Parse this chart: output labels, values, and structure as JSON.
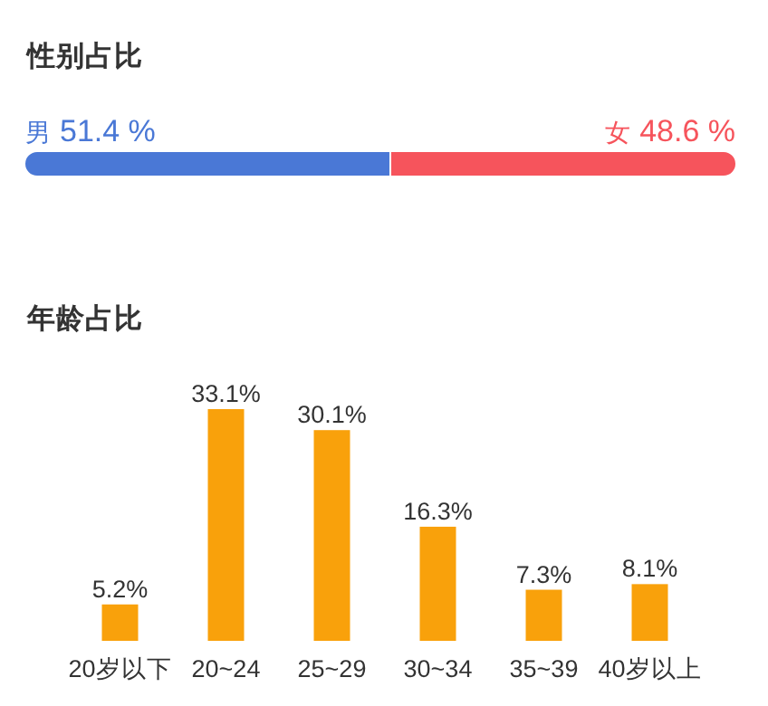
{
  "chart_data": [
    {
      "type": "bar",
      "title": "性别占比",
      "orientation": "horizontal",
      "stacked": true,
      "categories": [
        null
      ],
      "xlim": [
        0,
        100
      ],
      "tick_labels": false,
      "series": [
        {
          "name": "男",
          "color": "#4a78d6",
          "values": [
            51.4
          ],
          "value_labels": [
            "51.4 %"
          ]
        },
        {
          "name": "女",
          "color": "#f6545c",
          "values": [
            48.6
          ],
          "value_labels": [
            "48.6 %"
          ]
        }
      ]
    },
    {
      "type": "bar",
      "title": "年龄占比",
      "categories": [
        "20岁以下",
        "20~24",
        "25~29",
        "30~34",
        "35~39",
        "40岁以上"
      ],
      "tick_labels": "x",
      "values": [
        5.2,
        33.1,
        30.1,
        16.3,
        7.3,
        8.1
      ],
      "color": "#f9a10b",
      "value_labels": [
        "5.2%",
        "33.1%",
        "30.1%",
        "16.3%",
        "7.3%",
        "8.1%"
      ]
    }
  ]
}
